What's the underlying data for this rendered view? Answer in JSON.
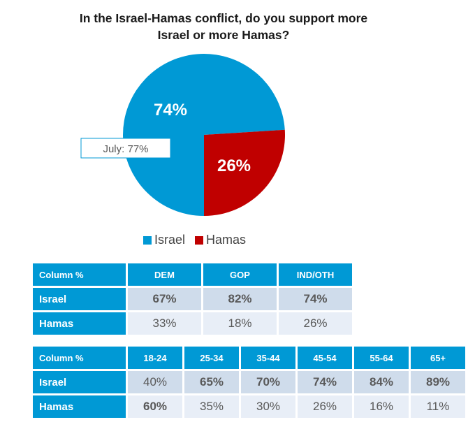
{
  "chart_data": {
    "type": "pie",
    "title": "In the Israel-Hamas conflict, do you support more Israel or more Hamas?",
    "title_lines": [
      "In the Israel-Hamas conflict, do you support more",
      "Israel or more Hamas?"
    ],
    "slices": [
      {
        "label": "Israel",
        "value": 74,
        "display": "74%",
        "color": "#0099D5"
      },
      {
        "label": "Hamas",
        "value": 26,
        "display": "26%",
        "color": "#C00000"
      }
    ],
    "annotation": "July: 77%",
    "legend": [
      "Israel",
      "Hamas"
    ],
    "legend_position": "bottom"
  },
  "table_party": {
    "header": [
      "Column %",
      "DEM",
      "GOP",
      "IND/OTH"
    ],
    "rows": [
      {
        "label": "Israel",
        "values": [
          "67%",
          "82%",
          "74%"
        ],
        "bold": [
          true,
          true,
          true
        ]
      },
      {
        "label": "Hamas",
        "values": [
          "33%",
          "18%",
          "26%"
        ],
        "bold": [
          false,
          false,
          false
        ]
      }
    ]
  },
  "table_age": {
    "header": [
      "Column %",
      "18-24",
      "25-34",
      "35-44",
      "45-54",
      "55-64",
      "65+"
    ],
    "rows": [
      {
        "label": "Israel",
        "values": [
          "40%",
          "65%",
          "70%",
          "74%",
          "84%",
          "89%"
        ],
        "bold": [
          false,
          true,
          true,
          true,
          true,
          true
        ]
      },
      {
        "label": "Hamas",
        "values": [
          "60%",
          "35%",
          "30%",
          "26%",
          "16%",
          "11%"
        ],
        "bold": [
          true,
          false,
          false,
          false,
          false,
          false
        ]
      }
    ]
  }
}
